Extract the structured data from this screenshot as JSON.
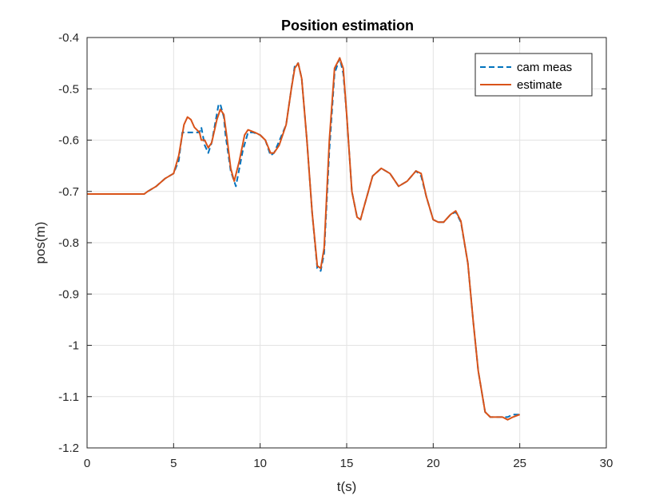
{
  "chart_data": {
    "type": "line",
    "title": "Position estimation",
    "xlabel": "t(s)",
    "ylabel": "pos(m)",
    "xlim": [
      0,
      30
    ],
    "ylim": [
      -1.2,
      -0.4
    ],
    "xticks": [
      0,
      5,
      10,
      15,
      20,
      25,
      30
    ],
    "xtick_labels": [
      "0",
      "5",
      "10",
      "15",
      "20",
      "25",
      "30"
    ],
    "yticks": [
      -0.4,
      -0.5,
      -0.6,
      -0.7,
      -0.8,
      -0.9,
      -1.0,
      -1.1,
      -1.2
    ],
    "ytick_labels": [
      "-0.4",
      "-0.5",
      "-0.6",
      "-0.7",
      "-0.8",
      "-0.9",
      "-1",
      "-1.1",
      "-1.2"
    ],
    "grid": true,
    "legend_position": "top-right",
    "series": [
      {
        "name": "cam meas",
        "color": "#0072BD",
        "style": "dashed",
        "x": [
          0,
          3.3,
          3.5,
          4.0,
          4.5,
          5.0,
          5.3,
          5.5,
          6.0,
          6.3,
          6.5,
          6.6,
          6.8,
          7.0,
          7.2,
          7.6,
          7.7,
          7.9,
          8.0,
          8.3,
          8.6,
          9.0,
          9.3,
          9.6,
          10.0,
          10.3,
          10.6,
          10.8,
          11.0,
          11.5,
          11.8,
          12.0,
          12.2,
          12.4,
          12.7,
          13.0,
          13.3,
          13.5,
          13.7,
          14.0,
          14.3,
          14.6,
          14.8,
          15.0,
          15.3,
          15.6,
          15.8,
          16.0,
          16.5,
          17.0,
          17.5,
          18.0,
          18.5,
          19.0,
          19.3,
          19.6,
          20.0,
          20.3,
          20.6,
          21.0,
          21.3,
          21.6,
          22.0,
          22.3,
          22.6,
          23.0,
          23.3,
          23.6,
          24.0,
          24.3,
          24.6,
          25.0
        ],
        "y": [
          -0.705,
          -0.705,
          -0.7,
          -0.69,
          -0.675,
          -0.665,
          -0.64,
          -0.585,
          -0.585,
          -0.585,
          -0.585,
          -0.575,
          -0.61,
          -0.625,
          -0.605,
          -0.53,
          -0.53,
          -0.555,
          -0.59,
          -0.66,
          -0.69,
          -0.62,
          -0.585,
          -0.585,
          -0.59,
          -0.6,
          -0.63,
          -0.625,
          -0.61,
          -0.57,
          -0.5,
          -0.455,
          -0.45,
          -0.48,
          -0.6,
          -0.74,
          -0.85,
          -0.855,
          -0.82,
          -0.62,
          -0.47,
          -0.44,
          -0.47,
          -0.55,
          -0.7,
          -0.75,
          -0.755,
          -0.73,
          -0.67,
          -0.655,
          -0.665,
          -0.69,
          -0.68,
          -0.66,
          -0.67,
          -0.71,
          -0.755,
          -0.76,
          -0.76,
          -0.745,
          -0.74,
          -0.76,
          -0.84,
          -0.95,
          -1.05,
          -1.13,
          -1.14,
          -1.14,
          -1.14,
          -1.14,
          -1.135,
          -1.135
        ]
      },
      {
        "name": "estimate",
        "color": "#D95319",
        "style": "solid",
        "x": [
          0,
          3.3,
          3.5,
          4.0,
          4.5,
          5.0,
          5.3,
          5.6,
          5.8,
          6.0,
          6.2,
          6.5,
          6.6,
          6.8,
          7.0,
          7.2,
          7.5,
          7.7,
          7.9,
          8.1,
          8.3,
          8.5,
          8.8,
          9.1,
          9.3,
          9.7,
          10.0,
          10.3,
          10.6,
          10.8,
          11.1,
          11.5,
          11.8,
          12.0,
          12.2,
          12.4,
          12.7,
          13.0,
          13.3,
          13.5,
          13.7,
          14.0,
          14.3,
          14.6,
          14.8,
          15.0,
          15.3,
          15.6,
          15.8,
          16.0,
          16.5,
          17.0,
          17.5,
          18.0,
          18.5,
          19.0,
          19.3,
          19.6,
          20.0,
          20.3,
          20.6,
          21.0,
          21.3,
          21.6,
          22.0,
          22.3,
          22.6,
          23.0,
          23.3,
          23.6,
          24.0,
          24.3,
          24.6,
          25.0
        ],
        "y": [
          -0.705,
          -0.705,
          -0.7,
          -0.69,
          -0.675,
          -0.665,
          -0.63,
          -0.57,
          -0.555,
          -0.56,
          -0.575,
          -0.585,
          -0.6,
          -0.6,
          -0.615,
          -0.605,
          -0.56,
          -0.54,
          -0.55,
          -0.6,
          -0.655,
          -0.68,
          -0.64,
          -0.59,
          -0.58,
          -0.585,
          -0.59,
          -0.6,
          -0.625,
          -0.625,
          -0.61,
          -0.57,
          -0.5,
          -0.46,
          -0.45,
          -0.48,
          -0.6,
          -0.74,
          -0.845,
          -0.85,
          -0.81,
          -0.6,
          -0.46,
          -0.44,
          -0.46,
          -0.55,
          -0.7,
          -0.75,
          -0.755,
          -0.73,
          -0.67,
          -0.655,
          -0.665,
          -0.69,
          -0.68,
          -0.66,
          -0.665,
          -0.71,
          -0.755,
          -0.76,
          -0.76,
          -0.745,
          -0.738,
          -0.758,
          -0.84,
          -0.95,
          -1.05,
          -1.13,
          -1.14,
          -1.14,
          -1.14,
          -1.145,
          -1.14,
          -1.135
        ]
      }
    ]
  }
}
